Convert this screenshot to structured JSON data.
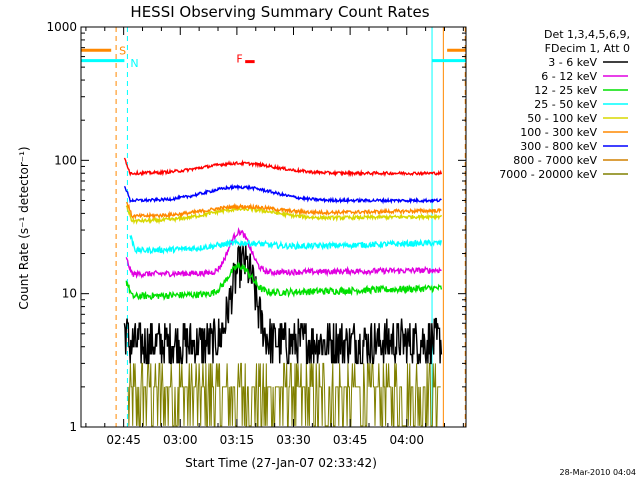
{
  "chart_data": {
    "type": "line",
    "title": "HESSI Observing Summary Count Rates",
    "xlabel": "Start Time (27-Jan-07 02:33:42)",
    "ylabel": "Count Rate (s⁻¹ detector⁻¹)",
    "yscale": "log",
    "ylim": [
      1,
      1000
    ],
    "xlim_minutes_from_start": [
      0,
      102
    ],
    "x_tick_labels": [
      "02:45",
      "03:00",
      "03:15",
      "03:30",
      "03:45",
      "04:00"
    ],
    "x_tick_minutes": [
      11.3,
      26.3,
      41.3,
      56.3,
      71.3,
      86.3
    ],
    "y_tick_labels": [
      "1",
      "10",
      "100",
      "1000"
    ],
    "y_tick_values": [
      1,
      10,
      100,
      1000
    ],
    "legend_header": [
      "Det 1,3,4,5,6,9,",
      "FDecim 1, Att 0"
    ],
    "series": [
      {
        "name": "3 - 6 keV",
        "color": "#000000",
        "start": 11.5,
        "end": 95.5,
        "base": 4.2,
        "end_value": 4.4,
        "peak": 17,
        "peak_time": 43,
        "peak_width": 3.5,
        "noise": 0.18
      },
      {
        "name": "6 - 12 keV",
        "color": "#e000e0",
        "start": 12,
        "end": 95.5,
        "base": 14,
        "end_value": 15,
        "peak": 29,
        "peak_time": 42,
        "peak_width": 3.5,
        "noise": 0.05
      },
      {
        "name": "12 - 25 keV",
        "color": "#00e000",
        "start": 12,
        "end": 95.5,
        "base": 9.5,
        "end_value": 11,
        "peak": 16,
        "peak_time": 42,
        "peak_width": 4,
        "noise": 0.06
      },
      {
        "name": "25 - 50 keV",
        "color": "#00ffff",
        "start": 13,
        "end": 95.5,
        "base": 21,
        "end_value": 24,
        "peak": 24,
        "peak_time": 43,
        "peak_width": 9,
        "noise": 0.05
      },
      {
        "name": "50 - 100 keV",
        "color": "#d8d800",
        "start": 12,
        "end": 95.5,
        "base": 35,
        "end_value": 38,
        "peak": 43,
        "peak_time": 43,
        "peak_width": 12,
        "noise": 0.03
      },
      {
        "name": "100 - 300 keV",
        "color": "#ff8800",
        "start": 12,
        "end": 95.5,
        "base": 38,
        "end_value": 42,
        "peak": 45,
        "peak_time": 43,
        "peak_width": 12,
        "noise": 0.03
      },
      {
        "name": "300 - 800 keV",
        "color": "#0000ff",
        "start": 11.5,
        "end": 95.5,
        "base": 50,
        "end_value": 50,
        "peak": 63,
        "peak_time": 42,
        "peak_width": 12,
        "noise": 0.025
      },
      {
        "name": "800 - 7000 keV",
        "color": "#d08000",
        "start": null,
        "end": null,
        "base": null,
        "end_value": null,
        "peak": null,
        "peak_time": null,
        "peak_width": null,
        "noise": null
      },
      {
        "name": "7000 - 20000 keV",
        "color": "#808000",
        "start": 12.5,
        "end": 95.5,
        "base": 2,
        "end_value": 2,
        "peak": 2,
        "peak_time": 43,
        "peak_width": 5,
        "noise": 0
      },
      {
        "name": "3 - 6 keV",
        "color": "#ff0000",
        "start": 11.5,
        "end": 95.5,
        "base": 80,
        "end_value": 80,
        "peak": 95,
        "peak_time": 42,
        "peak_width": 13,
        "noise": 0.025
      }
    ],
    "flag_labels": {
      "S": "S",
      "N": "N",
      "F": "F"
    },
    "flag_marks": [
      {
        "label": "S",
        "color": "#ff8800",
        "x": 9.3
      },
      {
        "label": "N",
        "color": "#00ffff",
        "x": 12.3
      },
      {
        "label": "F",
        "color": "#ff0000",
        "x": 41.7
      }
    ],
    "vertical_lines": [
      {
        "color": "#00ffff",
        "x": 0,
        "style": "solid"
      },
      {
        "color": "#00ffff",
        "x": 12.3,
        "style": "dashed"
      },
      {
        "color": "#ff8800",
        "x": 9.3,
        "style": "dashed"
      },
      {
        "color": "#00ffff",
        "x": 93,
        "style": "solid"
      },
      {
        "color": "#ff8800",
        "x": 96,
        "style": "solid"
      },
      {
        "color": "#ff8800",
        "x": 101.8,
        "style": "dashed"
      }
    ],
    "grid": false,
    "legend_position": "right"
  },
  "footer": {
    "timestamp": "28-Mar-2010 04:04"
  }
}
